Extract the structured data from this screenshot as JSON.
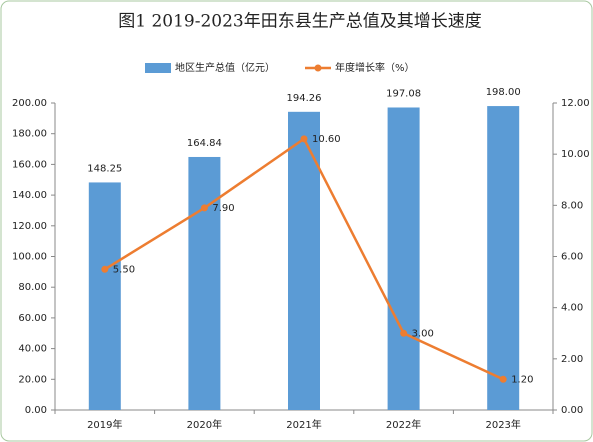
{
  "chart_data": {
    "type": "bar",
    "title": "图1  2019-2023年田东县生产总值及其增长速度",
    "categories": [
      "2019年",
      "2020年",
      "2021年",
      "2022年",
      "2023年"
    ],
    "series": [
      {
        "name": "地区生产总值（亿元）",
        "type": "bar",
        "color": "#5b9bd5",
        "axis": "y",
        "values": [
          148.25,
          164.84,
          194.26,
          197.08,
          198.0
        ],
        "value_labels": [
          "148.25",
          "164.84",
          "194.26",
          "197.08",
          "198.00"
        ]
      },
      {
        "name": "年度增长率（%）",
        "type": "line",
        "color": "#ed7d31",
        "axis": "y2",
        "values": [
          5.5,
          7.9,
          10.6,
          3.0,
          1.2
        ],
        "value_labels": [
          "5.50",
          "7.90",
          "10.60",
          "3.00",
          "1.20"
        ]
      }
    ],
    "ylim": [
      0,
      200
    ],
    "yticks": [
      {
        "value": 0,
        "label": "0.00"
      },
      {
        "value": 20,
        "label": "20.00"
      },
      {
        "value": 40,
        "label": "40.00"
      },
      {
        "value": 60,
        "label": "60.00"
      },
      {
        "value": 80,
        "label": "80.00"
      },
      {
        "value": 100,
        "label": "100.00"
      },
      {
        "value": 120,
        "label": "120.00"
      },
      {
        "value": 140,
        "label": "140.00"
      },
      {
        "value": 160,
        "label": "160.00"
      },
      {
        "value": 180,
        "label": "180.00"
      },
      {
        "value": 200,
        "label": "200.00"
      }
    ],
    "y2lim": [
      0,
      12
    ],
    "y2ticks": [
      {
        "value": 0,
        "label": "0.00"
      },
      {
        "value": 2,
        "label": "2.00"
      },
      {
        "value": 4,
        "label": "4.00"
      },
      {
        "value": 6,
        "label": "6.00"
      },
      {
        "value": 8,
        "label": "8.00"
      },
      {
        "value": 10,
        "label": "10.00"
      },
      {
        "value": 12,
        "label": "12.00"
      }
    ],
    "grid": false,
    "legend": "top"
  }
}
